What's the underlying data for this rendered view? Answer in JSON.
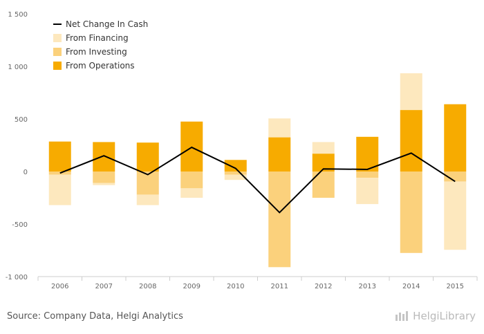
{
  "chart_data": {
    "type": "bar",
    "categories": [
      "2006",
      "2007",
      "2008",
      "2009",
      "2010",
      "2011",
      "2012",
      "2013",
      "2014",
      "2015"
    ],
    "series": [
      {
        "name": "From Financing",
        "kind": "bar",
        "color": "#fde8be",
        "values": [
          -290,
          -20,
          -100,
          -90,
          -50,
          180,
          110,
          -250,
          350,
          -650
        ]
      },
      {
        "name": "From Investing",
        "kind": "bar",
        "color": "#fbd17c",
        "values": [
          -30,
          -110,
          -220,
          -160,
          -30,
          -910,
          -250,
          -60,
          -775,
          -95
        ]
      },
      {
        "name": "From Operations",
        "kind": "bar",
        "color": "#f7ab00",
        "values": [
          285,
          280,
          275,
          475,
          110,
          325,
          170,
          330,
          585,
          640
        ]
      },
      {
        "name": "Net Change In Cash",
        "kind": "line",
        "color": "#000000",
        "values": [
          -15,
          150,
          -30,
          230,
          30,
          -390,
          25,
          20,
          175,
          -95
        ]
      }
    ],
    "ylim": [
      -1000,
      1500
    ],
    "yticks": [
      -1000,
      -500,
      0,
      500,
      1000,
      1500
    ],
    "ytick_labels": [
      "-1 000",
      "-500",
      "0",
      "500",
      "1 000",
      "1 500"
    ],
    "legend": [
      "Net Change In Cash",
      "From Financing",
      "From Investing",
      "From Operations"
    ],
    "legend_position": "top-left",
    "grid": false,
    "title": "",
    "xlabel": "",
    "ylabel": ""
  },
  "footer": {
    "source": "Source: Company Data, Helgi Analytics",
    "brand": "HelgiLibrary"
  }
}
